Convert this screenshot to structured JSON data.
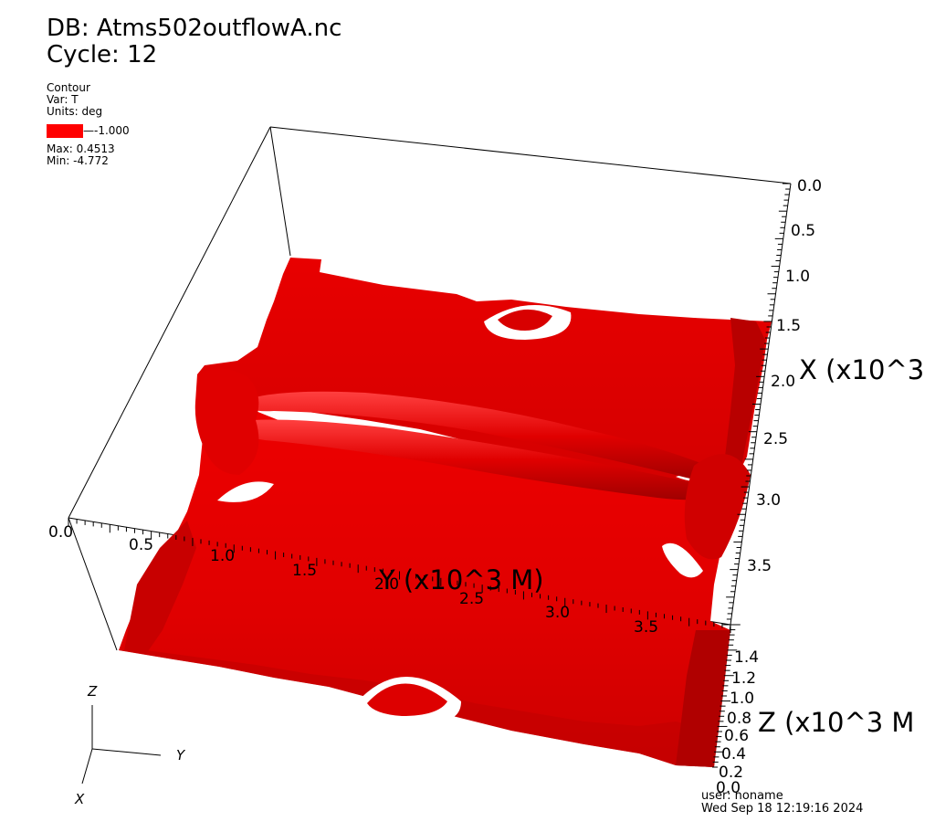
{
  "header": {
    "db_line": "DB: Atms502outflowA.nc",
    "cycle_line": "Cycle: 12"
  },
  "legend": {
    "plot_type": "Contour",
    "var_line": "Var: T",
    "units_line": "Units: deg",
    "swatch_color": "#ff0000",
    "level_label": "-1.000",
    "max_line": "Max:  0.4513",
    "min_line": "Min: -4.772"
  },
  "axes": {
    "x_title": "X (x10^3",
    "y_title": "Y (x10^3 M)",
    "z_title": "Z (x10^3 M",
    "x_ticks": [
      "0.0",
      "0.5",
      "1.0",
      "1.5",
      "2.0",
      "2.5",
      "3.0",
      "3.5"
    ],
    "y_ticks": [
      "0.0",
      "0.5",
      "1.0",
      "1.5",
      "2.0",
      "2.5",
      "3.0",
      "3.5"
    ],
    "z_ticks": [
      "1.4",
      "1.2",
      "1.0",
      "0.8",
      "0.6",
      "0.4",
      "0.2",
      "0.0"
    ]
  },
  "triad": {
    "z": "Z",
    "y": "Y",
    "x": "X"
  },
  "footer": {
    "user_line": "user: noname",
    "date_line": "Wed Sep 18 12:19:16 2024"
  },
  "colors": {
    "surface": "#ee0000",
    "surface_dark": "#b00000",
    "surface_light": "#ff3030"
  }
}
